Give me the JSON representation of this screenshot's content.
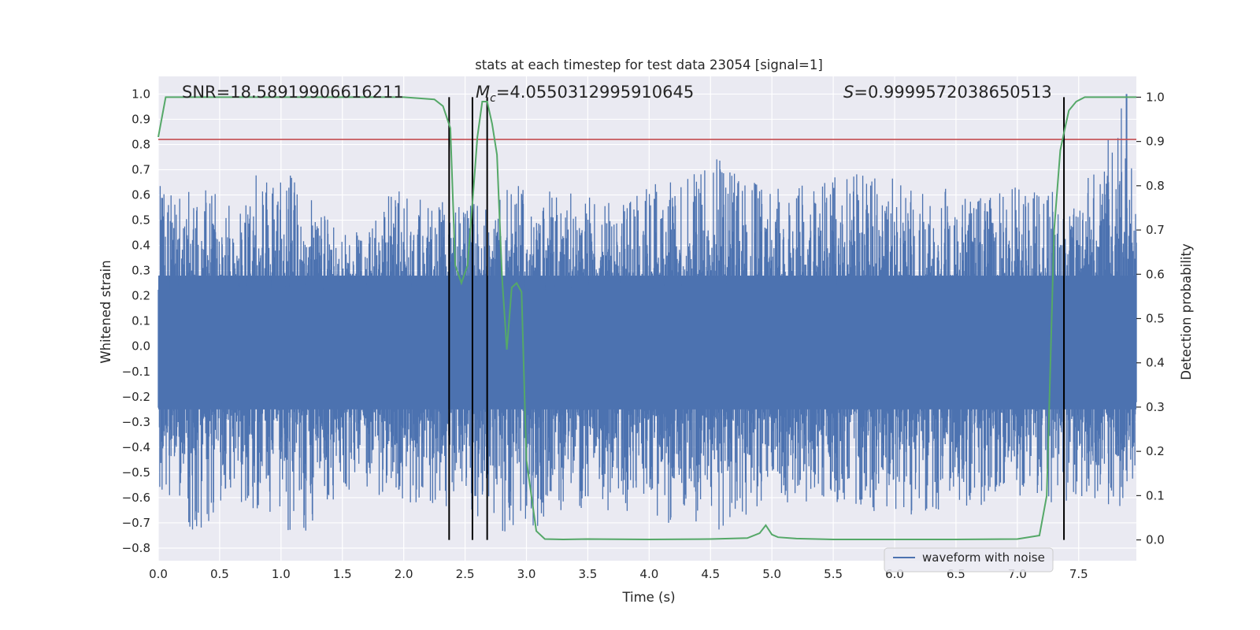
{
  "chart_data": {
    "type": "line",
    "title": "stats at each timestep for test data 23054 [signal=1]",
    "xlabel": "Time (s)",
    "ylabel": "Whitened strain",
    "y2label": "Detection probability",
    "xlim": [
      0.0,
      7.97
    ],
    "ylim": [
      -0.85,
      1.07
    ],
    "y2lim": [
      -0.047,
      1.047
    ],
    "x_ticks": [
      "0.0",
      "0.5",
      "1.0",
      "1.5",
      "2.0",
      "2.5",
      "3.0",
      "3.5",
      "4.0",
      "4.5",
      "5.0",
      "5.5",
      "6.0",
      "6.5",
      "7.0",
      "7.5"
    ],
    "y_ticks": [
      "−0.8",
      "−0.7",
      "−0.6",
      "−0.5",
      "−0.4",
      "−0.3",
      "−0.2",
      "−0.1",
      "0.0",
      "0.1",
      "0.2",
      "0.3",
      "0.4",
      "0.5",
      "0.6",
      "0.7",
      "0.8",
      "0.9",
      "1.0"
    ],
    "y2_ticks": [
      "0.0",
      "0.1",
      "0.2",
      "0.3",
      "0.4",
      "0.5",
      "0.6",
      "0.7",
      "0.8",
      "0.9",
      "1.0"
    ],
    "grid": true,
    "legend_position": "lower-right",
    "annotations": {
      "snr": "SNR=18.58919906616211",
      "mc_symbol": "M",
      "mc_sub": "c",
      "mc_value": "=4.0550312995910645",
      "s_symbol": "S",
      "s_value": "=0.9999572038650513"
    },
    "series": [
      {
        "name": "waveform with noise",
        "color": "#4c72b0",
        "axis": "left",
        "description_type": "noisy strain envelope",
        "envelope_x": [
          0.0,
          0.3,
          0.6,
          0.96,
          1.3,
          1.6,
          1.9,
          2.2,
          2.5,
          2.9,
          3.3,
          3.8,
          4.5,
          5.0,
          5.5,
          6.0,
          6.5,
          7.0,
          7.5,
          7.89,
          7.97
        ],
        "envelope_upper": [
          0.65,
          0.62,
          0.63,
          0.76,
          0.55,
          0.45,
          0.62,
          0.62,
          0.55,
          0.65,
          0.62,
          0.58,
          0.76,
          0.62,
          0.7,
          0.68,
          0.62,
          0.65,
          0.62,
          1.0,
          0.55
        ],
        "envelope_lower": [
          -0.55,
          -0.75,
          -0.6,
          -0.72,
          -0.75,
          -0.55,
          -0.65,
          -0.62,
          -0.65,
          -0.78,
          -0.65,
          -0.66,
          -0.75,
          -0.62,
          -0.62,
          -0.68,
          -0.66,
          -0.62,
          -0.62,
          -0.66,
          -0.55
        ]
      },
      {
        "name": "detection probability",
        "color": "#55a868",
        "axis": "right",
        "x": [
          0.0,
          0.06,
          0.2,
          1.0,
          2.0,
          2.25,
          2.32,
          2.38,
          2.42,
          2.47,
          2.52,
          2.56,
          2.6,
          2.64,
          2.68,
          2.72,
          2.76,
          2.8,
          2.84,
          2.88,
          2.92,
          2.96,
          3.0,
          3.08,
          3.15,
          3.3,
          3.5,
          4.0,
          4.5,
          4.8,
          4.9,
          4.95,
          5.0,
          5.05,
          5.2,
          5.5,
          6.0,
          6.5,
          7.0,
          7.18,
          7.24,
          7.3,
          7.35,
          7.38,
          7.42,
          7.48,
          7.55,
          7.97
        ],
        "y": [
          0.91,
          1.0,
          1.0,
          1.0,
          1.0,
          0.995,
          0.98,
          0.93,
          0.62,
          0.58,
          0.62,
          0.76,
          0.91,
          0.99,
          0.99,
          0.94,
          0.87,
          0.6,
          0.43,
          0.57,
          0.58,
          0.56,
          0.18,
          0.02,
          0.002,
          0.001,
          0.002,
          0.001,
          0.002,
          0.004,
          0.015,
          0.033,
          0.012,
          0.006,
          0.003,
          0.001,
          0.001,
          0.001,
          0.002,
          0.01,
          0.1,
          0.7,
          0.88,
          0.92,
          0.97,
          0.99,
          1.0,
          1.0
        ]
      }
    ],
    "hline": {
      "y": 0.82,
      "axis": "left",
      "color": "#c44e52"
    },
    "vlines": [
      2.37,
      2.56,
      2.68,
      7.38
    ]
  }
}
